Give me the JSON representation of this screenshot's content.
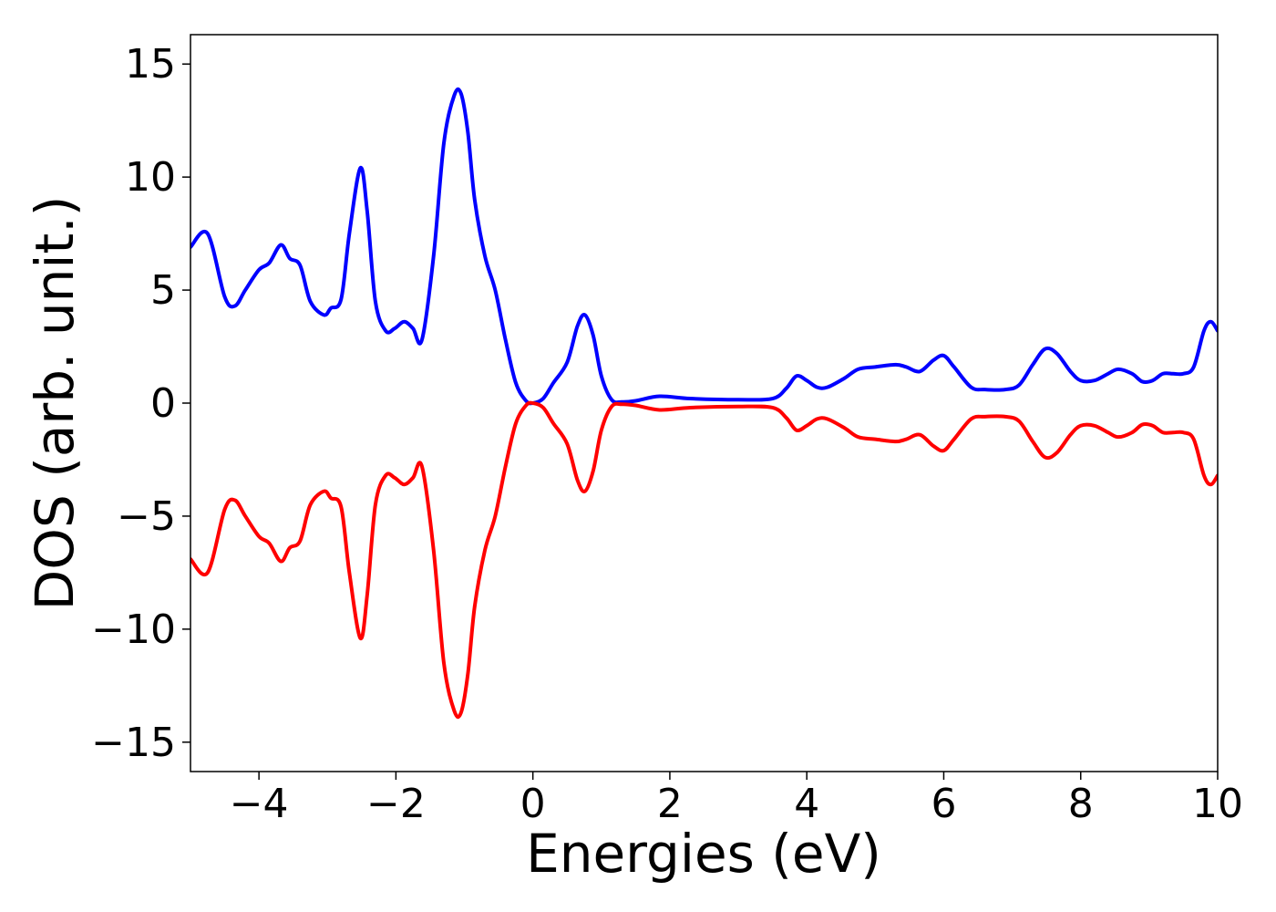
{
  "chart_data": {
    "type": "line",
    "title": "",
    "xlabel": "Energies (eV)",
    "ylabel": "DOS (arb. unit.)",
    "xlim": [
      -5,
      10
    ],
    "ylim": [
      -16.3,
      16.3
    ],
    "grid": false,
    "legend": "none",
    "x_ticks": [
      -4,
      -2,
      0,
      2,
      4,
      6,
      8,
      10
    ],
    "x_tick_labels": [
      "−4",
      "−2",
      "0",
      "2",
      "4",
      "6",
      "8",
      "10"
    ],
    "y_ticks": [
      15,
      10,
      5,
      0,
      -5,
      -10,
      -15
    ],
    "y_tick_labels": [
      "15",
      "10",
      "5",
      "0",
      "−5",
      "−10",
      "−15"
    ],
    "series": [
      {
        "color": "#0000ff",
        "x": [
          -5.0,
          -4.75,
          -4.5,
          -4.35,
          -4.2,
          -4.0,
          -3.85,
          -3.68,
          -3.55,
          -3.4,
          -3.25,
          -3.05,
          -2.95,
          -2.8,
          -2.68,
          -2.52,
          -2.42,
          -2.3,
          -2.15,
          -2.02,
          -1.88,
          -1.75,
          -1.62,
          -1.45,
          -1.3,
          -1.15,
          -1.05,
          -0.95,
          -0.85,
          -0.7,
          -0.55,
          -0.4,
          -0.25,
          -0.1,
          0.0,
          0.15,
          0.3,
          0.5,
          0.65,
          0.76,
          0.88,
          1.0,
          1.15,
          1.3,
          1.5,
          1.85,
          2.3,
          3.0,
          3.5,
          3.7,
          3.85,
          4.0,
          4.15,
          4.3,
          4.55,
          4.75,
          5.0,
          5.3,
          5.45,
          5.65,
          5.85,
          6.0,
          6.15,
          6.4,
          6.6,
          6.9,
          7.1,
          7.3,
          7.48,
          7.65,
          7.85,
          8.0,
          8.2,
          8.4,
          8.55,
          8.75,
          8.9,
          9.05,
          9.2,
          9.35,
          9.5,
          9.65,
          9.8,
          9.9,
          10.0
        ],
        "values": [
          6.9,
          7.5,
          4.7,
          4.3,
          5.0,
          5.9,
          6.2,
          7.0,
          6.4,
          6.1,
          4.5,
          3.9,
          4.2,
          4.6,
          7.5,
          10.4,
          8.5,
          4.5,
          3.2,
          3.3,
          3.6,
          3.3,
          2.8,
          6.5,
          11.5,
          13.6,
          13.7,
          12.0,
          9.0,
          6.5,
          5.0,
          2.8,
          0.9,
          0.1,
          0.0,
          0.2,
          0.9,
          1.8,
          3.4,
          3.9,
          3.0,
          1.2,
          0.15,
          0.05,
          0.1,
          0.3,
          0.2,
          0.15,
          0.2,
          0.65,
          1.2,
          1.0,
          0.7,
          0.7,
          1.1,
          1.5,
          1.6,
          1.7,
          1.6,
          1.4,
          1.9,
          2.1,
          1.6,
          0.7,
          0.6,
          0.6,
          0.8,
          1.7,
          2.4,
          2.2,
          1.4,
          1.0,
          1.0,
          1.3,
          1.5,
          1.3,
          0.95,
          1.0,
          1.3,
          1.3,
          1.3,
          1.6,
          3.2,
          3.6,
          3.2
        ]
      },
      {
        "color": "#ff0000",
        "x": [
          -5.0,
          -4.75,
          -4.5,
          -4.35,
          -4.2,
          -4.0,
          -3.85,
          -3.68,
          -3.55,
          -3.4,
          -3.25,
          -3.05,
          -2.95,
          -2.8,
          -2.68,
          -2.52,
          -2.42,
          -2.3,
          -2.15,
          -2.02,
          -1.88,
          -1.75,
          -1.62,
          -1.45,
          -1.3,
          -1.15,
          -1.05,
          -0.95,
          -0.85,
          -0.7,
          -0.55,
          -0.4,
          -0.25,
          -0.1,
          0.0,
          0.15,
          0.3,
          0.5,
          0.65,
          0.76,
          0.88,
          1.0,
          1.15,
          1.3,
          1.5,
          1.85,
          2.3,
          3.0,
          3.5,
          3.7,
          3.85,
          4.0,
          4.15,
          4.3,
          4.55,
          4.75,
          5.0,
          5.3,
          5.45,
          5.65,
          5.85,
          6.0,
          6.15,
          6.4,
          6.6,
          6.9,
          7.1,
          7.3,
          7.48,
          7.65,
          7.85,
          8.0,
          8.2,
          8.4,
          8.55,
          8.75,
          8.9,
          9.05,
          9.2,
          9.35,
          9.5,
          9.65,
          9.8,
          9.9,
          10.0
        ],
        "values": [
          -6.9,
          -7.5,
          -4.7,
          -4.3,
          -5.0,
          -5.9,
          -6.2,
          -7.0,
          -6.4,
          -6.1,
          -4.5,
          -3.9,
          -4.2,
          -4.6,
          -7.5,
          -10.4,
          -8.5,
          -4.5,
          -3.2,
          -3.3,
          -3.6,
          -3.3,
          -2.8,
          -6.5,
          -11.5,
          -13.6,
          -13.7,
          -12.0,
          -9.0,
          -6.5,
          -5.0,
          -2.8,
          -0.9,
          -0.1,
          0.0,
          -0.2,
          -0.9,
          -1.8,
          -3.4,
          -3.9,
          -3.0,
          -1.2,
          -0.15,
          -0.05,
          -0.1,
          -0.3,
          -0.2,
          -0.15,
          -0.2,
          -0.65,
          -1.2,
          -1.0,
          -0.7,
          -0.7,
          -1.1,
          -1.5,
          -1.6,
          -1.7,
          -1.6,
          -1.4,
          -1.9,
          -2.1,
          -1.6,
          -0.7,
          -0.6,
          -0.6,
          -0.8,
          -1.7,
          -2.4,
          -2.2,
          -1.4,
          -1.0,
          -1.0,
          -1.3,
          -1.5,
          -1.3,
          -0.95,
          -1.0,
          -1.3,
          -1.3,
          -1.3,
          -1.6,
          -3.2,
          -3.6,
          -3.2
        ]
      }
    ]
  }
}
